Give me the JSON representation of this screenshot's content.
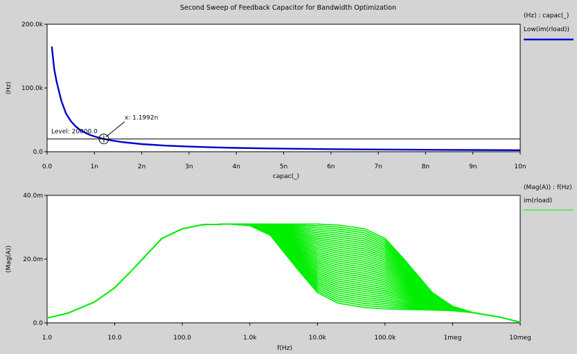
{
  "window": {
    "title": "Second Sweep of Feedback Capacitor for Bandwidth Optimization"
  },
  "colors": {
    "background": "#d4d4d4",
    "plot_area": "#ffffff",
    "top_trace": "#0000c8",
    "bottom_trace": "#00ee00"
  },
  "chart_data": [
    {
      "type": "line",
      "title": "",
      "xlabel": "capac(_)",
      "ylabel": "(Hz)",
      "x_unit": "F",
      "xlim": [
        0,
        1e-08
      ],
      "ylim": [
        0,
        200000
      ],
      "x_ticks": [
        "0.0",
        "1n",
        "2n",
        "3n",
        "4n",
        "5n",
        "6n",
        "7n",
        "8n",
        "9n",
        "10n"
      ],
      "y_ticks": [
        "0.0",
        "100.0k",
        "200.0k"
      ],
      "legend": {
        "placement": "right",
        "header": "(Hz) : capac(_)",
        "entries": [
          {
            "name": "Low(im(rload))",
            "color": "#0000c8"
          }
        ]
      },
      "series": [
        {
          "name": "Low(im(rload))",
          "color": "#0000c8",
          "x": [
            1e-10,
            1.5e-10,
            2e-10,
            3e-10,
            4e-10,
            5e-10,
            6e-10,
            7e-10,
            8e-10,
            9e-10,
            1e-09,
            1.2e-09,
            1.4e-09,
            1.6e-09,
            2e-09,
            2.5e-09,
            3e-09,
            3.5e-09,
            4e-09,
            4.5e-09,
            5e-09,
            6e-09,
            7e-09,
            8e-09,
            9e-09,
            1e-08
          ],
          "y": [
            165000,
            130000,
            110000,
            80000,
            60000,
            48000,
            40000,
            34000,
            30000,
            26500,
            24000,
            20000,
            17200,
            15000,
            12000,
            9600,
            8000,
            6900,
            6000,
            5300,
            4800,
            4000,
            3500,
            3000,
            2700,
            2400
          ]
        }
      ],
      "level_line": {
        "label": "Level: 20000.0",
        "y": 20000
      },
      "marker": {
        "label": "x: 1.1992n",
        "x": 1.1992e-09,
        "y": 20000
      }
    },
    {
      "type": "line",
      "title": "",
      "xlabel": "f(Hz)",
      "ylabel": "(Mag(A))",
      "x_scale": "log",
      "xlim": [
        1,
        10000000
      ],
      "ylim": [
        0,
        0.04
      ],
      "x_ticks": [
        "1.0",
        "10.0",
        "100.0",
        "1.0k",
        "10.0k",
        "100.0k",
        "1meg",
        "10meg"
      ],
      "y_ticks": [
        "0.0",
        "20.0m",
        "40.0m"
      ],
      "legend": {
        "placement": "right",
        "header": "(Mag(A)) : f(Hz)",
        "entries": [
          {
            "name": "im(rload)",
            "color": "#00ee00"
          }
        ]
      },
      "series": [
        {
          "name": "im(rload)",
          "color": "#00ee00",
          "sweep_count": 40,
          "x": [
            1,
            2,
            5,
            10,
            20,
            50,
            100,
            200,
            500,
            1000,
            2000,
            5000,
            10000,
            20000,
            50000,
            100000,
            200000,
            500000,
            1000000,
            2000000,
            5000000,
            10000000
          ],
          "y_first": [
            0.0015,
            0.003,
            0.0065,
            0.011,
            0.0175,
            0.0265,
            0.0295,
            0.0308,
            0.031,
            0.0305,
            0.0275,
            0.017,
            0.0095,
            0.0062,
            0.0048,
            0.0044,
            0.0042,
            0.004,
            0.0038,
            0.0032,
            0.0018,
            0.0002
          ],
          "y_last": [
            0.0015,
            0.003,
            0.0065,
            0.011,
            0.0175,
            0.0265,
            0.0295,
            0.0308,
            0.031,
            0.031,
            0.031,
            0.031,
            0.031,
            0.0307,
            0.0295,
            0.0265,
            0.0195,
            0.0095,
            0.0052,
            0.0032,
            0.0018,
            0.0002
          ]
        }
      ]
    }
  ]
}
